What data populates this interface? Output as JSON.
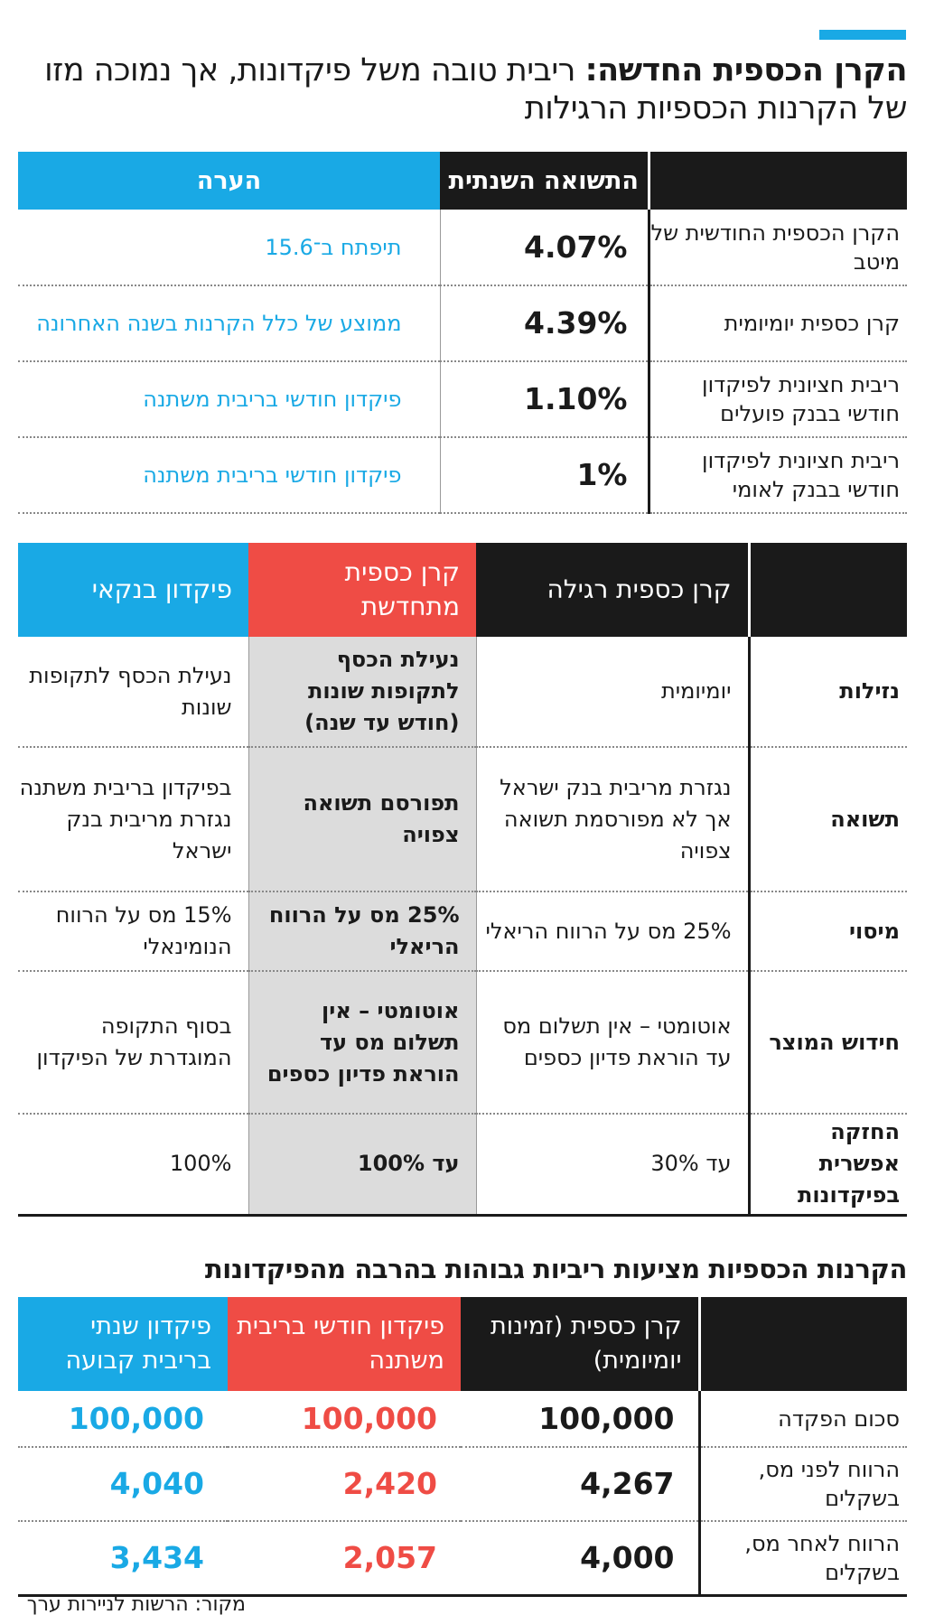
{
  "headline": {
    "lead": "הקרן הכספית החדשה:",
    "rest": " ריבית טובה משל פיקדונות, אך נמוכה מזו של הקרנות הכספיות הרגילות"
  },
  "table1": {
    "headers": [
      "",
      "התשואה השנתית",
      "הערה"
    ],
    "rows": [
      {
        "label": "הקרן הכספית החודשית של מיטב",
        "value": "4.07%",
        "note": "תיפתח ב־15.6"
      },
      {
        "label": "קרן כספית יומיומית",
        "value": "4.39%",
        "note": "ממוצע של כלל הקרנות בשנה האחרונה"
      },
      {
        "label": "ריבית חציונית לפיקדון חודשי בבנק פועלים",
        "value": "1.10%",
        "note": "פיקדון חודשי בריבית משתנה"
      },
      {
        "label": "ריבית חציונית לפיקדון חודשי בבנק לאומי",
        "value": "1%",
        "note": "פיקדון חודשי בריבית משתנה"
      }
    ]
  },
  "table2": {
    "headers": [
      "",
      "קרן כספית רגילה",
      "קרן כספית מתחדשת",
      "פיקדון בנקאי"
    ],
    "rows": [
      {
        "label": "נזילות",
        "regular": "יומיומית",
        "renewing": "נעילת הכסף לתקופות שונות (חודש עד שנה)",
        "bank": "נעילת הכסף לתקופות שונות"
      },
      {
        "label": "תשואה",
        "regular": "נגזרת מריבית בנק ישראל אך לא מפורסמת תשואה צפויה",
        "renewing": "תפורסם תשואה צפויה",
        "bank": "בפיקדון בריבית משתנה נגזרת מריבית בנק ישראל"
      },
      {
        "label": "מיסוי",
        "regular": "25% מס על הרווח הריאלי",
        "renewing": "25% מס על הרווח הריאלי",
        "bank": "15% מס על הרווח הנומינאלי"
      },
      {
        "label": "חידוש המוצר",
        "regular": "אוטומטי – אין תשלום מס עד הוראת פדיון כספים",
        "renewing": "אוטומטי – אין תשלום מס עד הוראת פדיון כספים",
        "bank": "בסוף התקופה המוגדרת של הפיקדון"
      },
      {
        "label": "החזקה אפשרית בפיקדונות",
        "regular": "עד 30%",
        "renewing": "עד 100%",
        "bank": "100%"
      }
    ]
  },
  "table3": {
    "title": "הקרנות הכספיות מציעות ריביות גבוהות בהרבה מהפיקדונות",
    "headers": [
      "",
      "קרן כספית (זמינות יומיומית)",
      "פיקדון חודשי בריבית משתנה",
      "פיקדון שנתי בריבית קבועה"
    ],
    "rows": [
      {
        "label": "סכום הפקדה",
        "fund": "100,000",
        "monthly": "100,000",
        "annual": "100,000"
      },
      {
        "label": "הרווח לפני מס, בשקלים",
        "fund": "4,267",
        "monthly": "2,420",
        "annual": "4,040"
      },
      {
        "label": "הרווח לאחר מס, בשקלים",
        "fund": "4,000",
        "monthly": "2,057",
        "annual": "3,434"
      }
    ]
  },
  "source": "מקור: הרשות לניירות ערך",
  "colors": {
    "blue": "#19a9e5",
    "red": "#ef4c45",
    "dark": "#1a1a1a",
    "gray": "#dcdcdc"
  }
}
